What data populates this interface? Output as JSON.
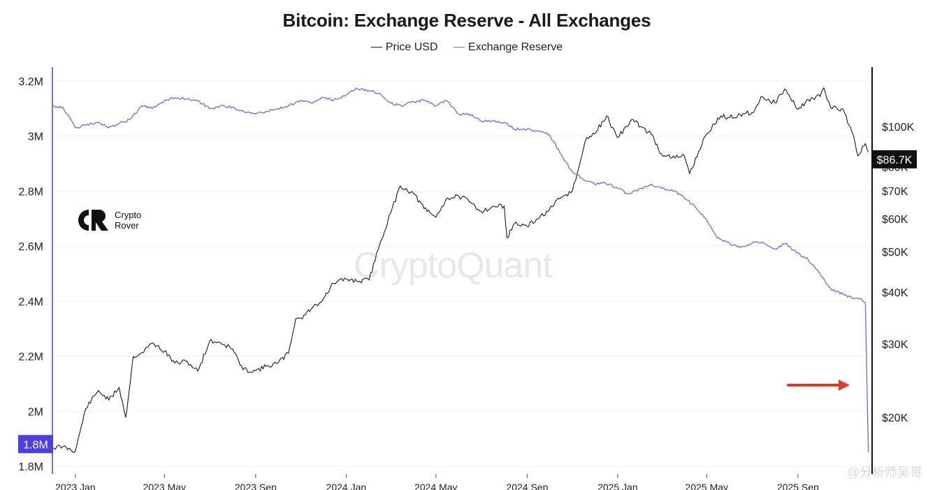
{
  "chart_data": {
    "type": "line",
    "title": "Bitcoin: Exchange Reserve - All Exchanges",
    "legend": [
      {
        "name": "Price USD",
        "color": "#1a1a1a"
      },
      {
        "name": "Exchange Reserve",
        "color": "#7b72d9"
      }
    ],
    "legend_position": "top-center",
    "grid": "horizontal",
    "x_ticks": [
      "2023 Jan",
      "2023 May",
      "2023 Sep",
      "2024 Jan",
      "2024 May",
      "2024 Sep",
      "2025 Jan",
      "2025 May",
      "2025 Sep"
    ],
    "x_range": [
      "2022-12-01",
      "2025-12-10"
    ],
    "left_axis": {
      "series": "Exchange Reserve",
      "unit": "BTC",
      "ticks": [
        "1.8M",
        "2M",
        "2.2M",
        "2.4M",
        "2.6M",
        "2.8M",
        "3M",
        "3.2M"
      ],
      "range": [
        1800000,
        3200000
      ],
      "current_label": "1.8M",
      "current_color": "#4b3fe0"
    },
    "right_axis": {
      "series": "Price USD",
      "scale": "log",
      "ticks": [
        "$20K",
        "$30K",
        "$40K",
        "$50K",
        "$60K",
        "$70K",
        "$80K",
        "$100K"
      ],
      "current_label": "$86.7K",
      "current_color": "#111111"
    },
    "series": [
      {
        "name": "Price USD",
        "x": [
          "2022-12-01",
          "2022-12-15",
          "2023-01-01",
          "2023-01-15",
          "2023-02-01",
          "2023-02-15",
          "2023-03-01",
          "2023-03-10",
          "2023-03-20",
          "2023-04-01",
          "2023-04-15",
          "2023-05-01",
          "2023-05-15",
          "2023-06-01",
          "2023-06-15",
          "2023-07-01",
          "2023-07-15",
          "2023-08-01",
          "2023-08-15",
          "2023-09-01",
          "2023-09-15",
          "2023-10-01",
          "2023-10-15",
          "2023-10-25",
          "2023-11-01",
          "2023-11-15",
          "2023-12-01",
          "2023-12-15",
          "2024-01-01",
          "2024-01-15",
          "2024-02-01",
          "2024-02-15",
          "2024-03-01",
          "2024-03-14",
          "2024-04-01",
          "2024-04-15",
          "2024-05-01",
          "2024-05-15",
          "2024-06-01",
          "2024-06-15",
          "2024-07-01",
          "2024-07-15",
          "2024-08-01",
          "2024-08-05",
          "2024-08-15",
          "2024-09-01",
          "2024-09-15",
          "2024-10-01",
          "2024-10-15",
          "2024-11-01",
          "2024-11-10",
          "2024-11-20",
          "2024-12-01",
          "2024-12-17",
          "2025-01-01",
          "2025-01-20",
          "2025-02-01",
          "2025-02-15",
          "2025-03-01",
          "2025-03-15",
          "2025-04-01",
          "2025-04-08",
          "2025-04-20",
          "2025-05-01",
          "2025-05-20",
          "2025-06-01",
          "2025-06-15",
          "2025-07-01",
          "2025-07-15",
          "2025-08-01",
          "2025-08-14",
          "2025-09-01",
          "2025-09-15",
          "2025-10-01",
          "2025-10-06",
          "2025-10-15",
          "2025-11-01",
          "2025-11-15",
          "2025-11-21",
          "2025-12-01",
          "2025-12-05"
        ],
        "values": [
          16900,
          17000,
          16600,
          21000,
          23200,
          22000,
          23600,
          20000,
          28000,
          28600,
          30200,
          28800,
          27000,
          27200,
          25800,
          30500,
          30300,
          29200,
          26000,
          25900,
          26500,
          27000,
          28500,
          34500,
          34600,
          36500,
          38500,
          42000,
          43000,
          42500,
          42800,
          52000,
          62000,
          72000,
          69000,
          63500,
          60500,
          67000,
          68000,
          66000,
          62500,
          64000,
          64500,
          54000,
          58500,
          57500,
          60000,
          63000,
          67000,
          70000,
          80000,
          94000,
          96000,
          106000,
          94000,
          104000,
          100000,
          96000,
          86000,
          84000,
          85000,
          77000,
          87000,
          96000,
          106000,
          105000,
          107000,
          108000,
          118000,
          114000,
          123000,
          110000,
          116000,
          118000,
          124000,
          111000,
          110000,
          95000,
          85000,
          91000,
          86700
        ]
      },
      {
        "name": "Exchange Reserve",
        "x": [
          "2022-12-01",
          "2022-12-15",
          "2023-01-01",
          "2023-01-15",
          "2023-02-01",
          "2023-02-15",
          "2023-03-01",
          "2023-03-15",
          "2023-04-01",
          "2023-04-15",
          "2023-05-01",
          "2023-05-15",
          "2023-06-01",
          "2023-06-15",
          "2023-07-01",
          "2023-07-15",
          "2023-08-01",
          "2023-08-15",
          "2023-09-01",
          "2023-09-15",
          "2023-10-01",
          "2023-10-15",
          "2023-11-01",
          "2023-11-15",
          "2023-12-01",
          "2023-12-15",
          "2024-01-01",
          "2024-01-15",
          "2024-02-01",
          "2024-02-15",
          "2024-03-01",
          "2024-03-15",
          "2024-04-01",
          "2024-04-15",
          "2024-05-01",
          "2024-05-15",
          "2024-06-01",
          "2024-06-15",
          "2024-07-01",
          "2024-07-15",
          "2024-08-01",
          "2024-08-15",
          "2024-09-01",
          "2024-09-15",
          "2024-10-01",
          "2024-10-15",
          "2024-11-01",
          "2024-11-15",
          "2024-12-01",
          "2024-12-15",
          "2025-01-01",
          "2025-01-15",
          "2025-02-01",
          "2025-02-15",
          "2025-03-01",
          "2025-03-15",
          "2025-04-01",
          "2025-04-15",
          "2025-05-01",
          "2025-05-15",
          "2025-06-01",
          "2025-06-15",
          "2025-07-01",
          "2025-07-15",
          "2025-08-01",
          "2025-08-15",
          "2025-09-01",
          "2025-09-15",
          "2025-10-01",
          "2025-10-15",
          "2025-11-01",
          "2025-11-15",
          "2025-11-25",
          "2025-12-01",
          "2025-12-03",
          "2025-12-05"
        ],
        "values": [
          3110000,
          3105000,
          3030000,
          3040000,
          3050000,
          3030000,
          3045000,
          3060000,
          3110000,
          3100000,
          3130000,
          3140000,
          3135000,
          3130000,
          3100000,
          3110000,
          3105000,
          3090000,
          3080000,
          3090000,
          3100000,
          3110000,
          3130000,
          3120000,
          3140000,
          3130000,
          3150000,
          3175000,
          3165000,
          3155000,
          3120000,
          3110000,
          3125000,
          3130000,
          3110000,
          3130000,
          3080000,
          3080000,
          3055000,
          3055000,
          3050000,
          3025000,
          3025000,
          3020000,
          3005000,
          2940000,
          2870000,
          2845000,
          2825000,
          2830000,
          2810000,
          2790000,
          2810000,
          2825000,
          2810000,
          2805000,
          2775000,
          2745000,
          2695000,
          2630000,
          2610000,
          2595000,
          2610000,
          2615000,
          2590000,
          2610000,
          2575000,
          2550000,
          2500000,
          2445000,
          2425000,
          2410000,
          2410000,
          2395000,
          2100000,
          1850000
        ]
      }
    ]
  },
  "logo": {
    "name": "Crypto Rover",
    "line1": "Crypto",
    "line2": "Rover"
  },
  "watermark": "CryptoQuant",
  "credit": "@分析师吴哥"
}
